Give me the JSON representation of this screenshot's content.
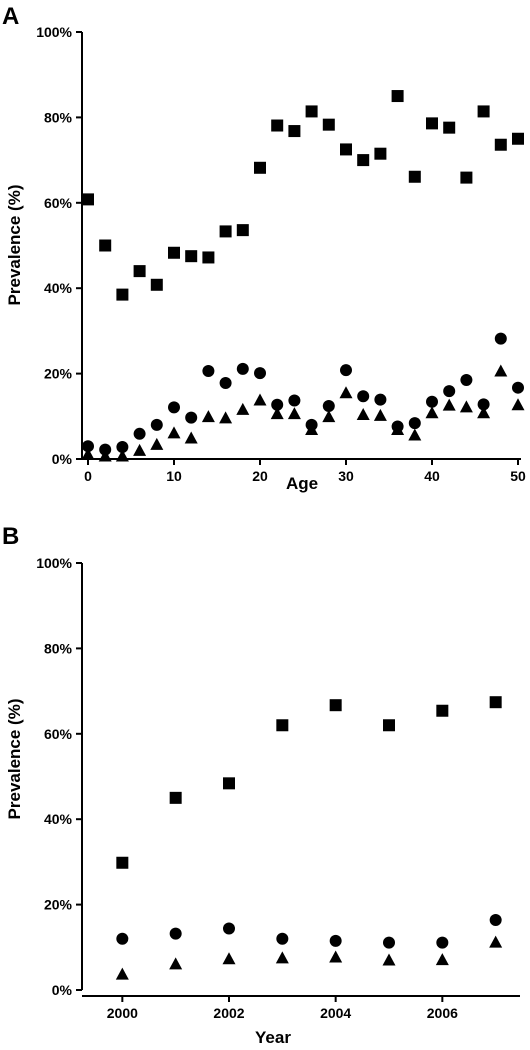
{
  "chart_data": [
    {
      "panel": "A",
      "type": "scatter",
      "title": "",
      "xlabel": "Age",
      "ylabel": "Prevalence (%)",
      "xlim": [
        0,
        50
      ],
      "ylim": [
        0,
        100
      ],
      "xticks": [
        0,
        10,
        20,
        30,
        40,
        50
      ],
      "xtick_labels": [
        "0",
        "10",
        "20",
        "30",
        "40",
        "50"
      ],
      "yticks": [
        0,
        20,
        40,
        60,
        80,
        100
      ],
      "ytick_labels": [
        "0%",
        "20%",
        "40%",
        "60%",
        "80%",
        "100%"
      ],
      "grid": false,
      "series": [
        {
          "marker": "square",
          "x": [
            0,
            2,
            4,
            6,
            8,
            10,
            12,
            14,
            16,
            18,
            20,
            22,
            24,
            26,
            28,
            30,
            32,
            34,
            36,
            38,
            40,
            42,
            44,
            46,
            48,
            50
          ],
          "y": [
            60.8,
            50.0,
            38.5,
            44.0,
            40.8,
            48.3,
            47.5,
            47.2,
            53.3,
            53.6,
            68.2,
            78.1,
            76.8,
            81.4,
            78.3,
            72.5,
            70.0,
            71.5,
            85.0,
            66.1,
            78.6,
            77.6,
            65.9,
            81.4,
            73.6,
            75.0
          ]
        },
        {
          "marker": "circle",
          "x": [
            0,
            2,
            4,
            6,
            8,
            10,
            12,
            14,
            16,
            18,
            20,
            22,
            24,
            26,
            28,
            30,
            32,
            34,
            36,
            38,
            40,
            42,
            44,
            46,
            48,
            50
          ],
          "y": [
            3.0,
            2.2,
            2.8,
            5.9,
            8.0,
            12.1,
            9.7,
            20.6,
            17.8,
            21.1,
            20.1,
            12.7,
            13.7,
            8.0,
            12.4,
            20.8,
            14.7,
            13.9,
            7.6,
            8.4,
            13.4,
            15.9,
            18.5,
            12.8,
            28.2,
            16.7
          ]
        },
        {
          "marker": "triangle",
          "x": [
            0,
            2,
            4,
            6,
            8,
            10,
            12,
            14,
            16,
            18,
            20,
            22,
            24,
            26,
            28,
            30,
            32,
            34,
            36,
            38,
            40,
            42,
            44,
            46,
            48,
            50
          ],
          "y": [
            1.0,
            0.6,
            0.6,
            1.9,
            3.3,
            6.0,
            4.8,
            9.8,
            9.5,
            11.5,
            13.7,
            10.5,
            10.5,
            6.8,
            9.8,
            15.4,
            10.3,
            10.1,
            6.8,
            5.5,
            10.7,
            12.5,
            12.1,
            10.7,
            20.5,
            12.6
          ]
        }
      ]
    },
    {
      "panel": "B",
      "type": "scatter",
      "title": "",
      "xlabel": "Year",
      "ylabel": "Prevalence (%)",
      "xlim": [
        1999.6,
        2007.4
      ],
      "ylim": [
        0,
        100
      ],
      "xticks": [
        2000,
        2002,
        2004,
        2006
      ],
      "xtick_labels": [
        "2000",
        "2002",
        "2004",
        "2006"
      ],
      "yticks": [
        0,
        20,
        40,
        60,
        80,
        100
      ],
      "ytick_labels": [
        "0%",
        "20%",
        "40%",
        "60%",
        "80%",
        "100%"
      ],
      "grid": false,
      "series": [
        {
          "marker": "square",
          "x": [
            2000,
            2001,
            2002,
            2003,
            2004,
            2005,
            2006,
            2007
          ],
          "y": [
            29.8,
            45.0,
            48.4,
            62.0,
            66.7,
            62.0,
            65.4,
            67.4
          ]
        },
        {
          "marker": "circle",
          "x": [
            2000,
            2001,
            2002,
            2003,
            2004,
            2005,
            2006,
            2007
          ],
          "y": [
            12.0,
            13.2,
            14.4,
            12.0,
            11.5,
            11.1,
            11.1,
            16.4
          ]
        },
        {
          "marker": "triangle",
          "x": [
            2000,
            2001,
            2002,
            2003,
            2004,
            2005,
            2006,
            2007
          ],
          "y": [
            3.6,
            6.0,
            7.2,
            7.4,
            7.6,
            6.9,
            7.0,
            11.1
          ]
        }
      ]
    }
  ]
}
